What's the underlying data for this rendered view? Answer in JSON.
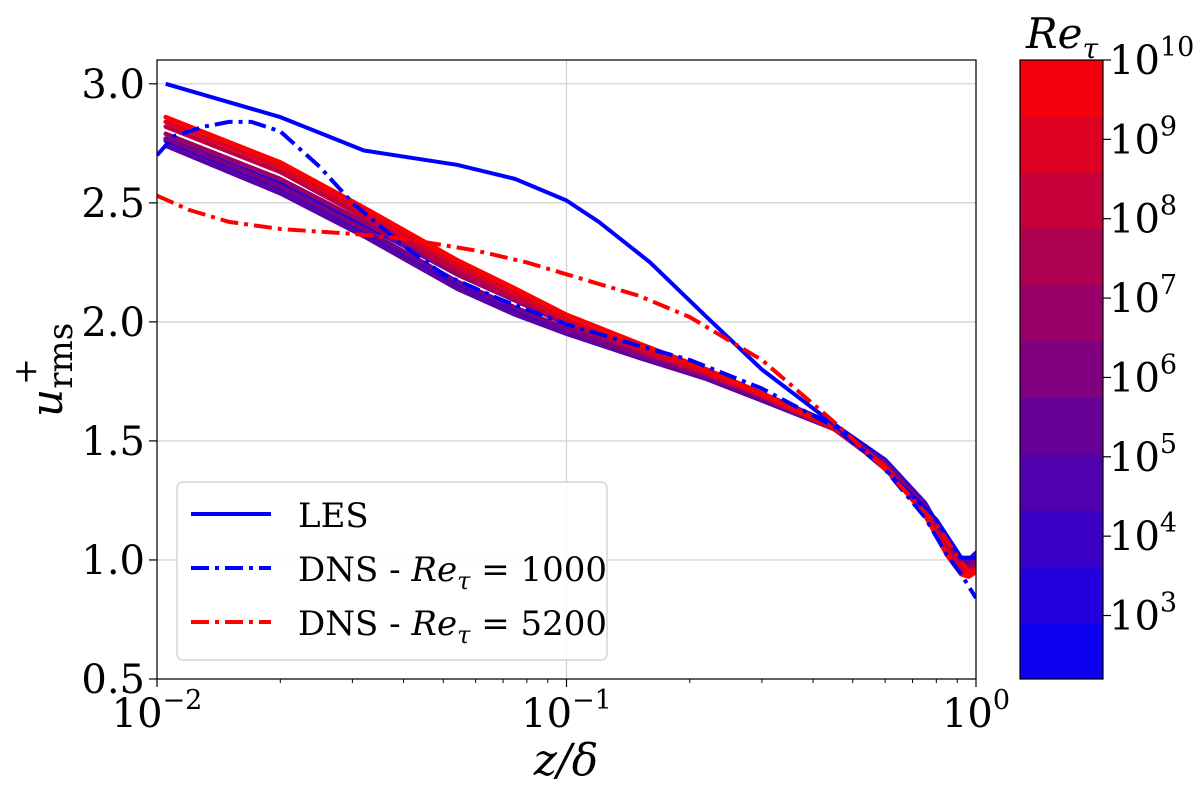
{
  "chart_data": {
    "type": "line",
    "xlabel": "z/δ",
    "ylabel": "u+ rms",
    "ylabel_parts": {
      "main": "u",
      "sup": "+",
      "sub": "rms"
    },
    "xscale": "log",
    "xlim": [
      0.01,
      1
    ],
    "ylim": [
      0.5,
      3.1
    ],
    "x_ticks": [
      {
        "base": "10",
        "exp": "−2"
      },
      {
        "base": "10",
        "exp": "−1"
      },
      {
        "base": "10",
        "exp": "0"
      }
    ],
    "y_ticks": [
      "0.5",
      "1.0",
      "1.5",
      "2.0",
      "2.5",
      "3.0"
    ],
    "grid": true,
    "legend_position": "lower-left",
    "series": [
      {
        "name": "LES",
        "label_parts": {
          "text": "LES"
        },
        "color": "#0000ff",
        "style": "solid",
        "x": [
          0.0105,
          0.02,
          0.032,
          0.054,
          0.075,
          0.1,
          0.12,
          0.16,
          0.22,
          0.3,
          0.45,
          0.6,
          0.8,
          0.92,
          1.0
        ],
        "y": [
          3.0,
          2.86,
          2.72,
          2.66,
          2.6,
          2.51,
          2.42,
          2.25,
          2.02,
          1.8,
          1.57,
          1.38,
          1.17,
          1.01,
          1.01
        ]
      },
      {
        "name": "DNS - Reτ = 1000",
        "label_parts": {
          "text": "DNS - ",
          "math": "Re",
          "sub": "τ",
          "eq": " = 1000"
        },
        "color": "#0000ff",
        "style": "dashdot",
        "x": [
          0.01,
          0.011,
          0.013,
          0.015,
          0.017,
          0.02,
          0.025,
          0.03,
          0.04,
          0.05,
          0.07,
          0.1,
          0.15,
          0.2,
          0.3,
          0.45,
          0.6,
          0.75,
          0.85,
          0.92,
          1.0
        ],
        "y": [
          2.7,
          2.78,
          2.82,
          2.84,
          2.84,
          2.8,
          2.65,
          2.5,
          2.32,
          2.2,
          2.09,
          1.99,
          1.9,
          1.84,
          1.72,
          1.56,
          1.38,
          1.18,
          1.02,
          0.94,
          0.84
        ]
      },
      {
        "name": "DNS - Reτ = 5200",
        "label_parts": {
          "text": "DNS - ",
          "math": "Re",
          "sub": "τ",
          "eq": " = 5200"
        },
        "color": "#ff0000",
        "style": "dashdot",
        "x": [
          0.01,
          0.012,
          0.015,
          0.02,
          0.03,
          0.04,
          0.06,
          0.08,
          0.1,
          0.15,
          0.2,
          0.3,
          0.45,
          0.6,
          0.8,
          0.92,
          1.0
        ],
        "y": [
          2.53,
          2.47,
          2.42,
          2.39,
          2.37,
          2.35,
          2.3,
          2.25,
          2.2,
          2.11,
          2.02,
          1.84,
          1.58,
          1.38,
          1.15,
          0.99,
          0.92
        ]
      }
    ],
    "family": {
      "colorbar_label": "Reτ",
      "colorbar_label_parts": {
        "main": "Re",
        "sub": "τ"
      },
      "colorbar_range_log10": [
        2.2,
        10.0
      ],
      "colorbar_tick_exponents": [
        "3",
        "4",
        "5",
        "6",
        "7",
        "8",
        "9",
        "10"
      ],
      "colorbar_tick_log10": [
        3,
        4,
        5,
        6,
        7,
        8,
        9,
        10
      ],
      "color_low": "#0000ff",
      "color_high": "#ff0000",
      "style": "solid",
      "x": [
        0.0105,
        0.02,
        0.032,
        0.054,
        0.075,
        0.1,
        0.15,
        0.22,
        0.3,
        0.45,
        0.6,
        0.75,
        0.85,
        0.92,
        0.96,
        1.0
      ],
      "lines": [
        {
          "re_log10": 3,
          "y": [
            2.77,
            2.58,
            2.41,
            2.2,
            2.09,
            1.99,
            1.88,
            1.79,
            1.7,
            1.57,
            1.42,
            1.24,
            1.07,
            0.99,
            0.99,
            1.02
          ]
        },
        {
          "re_log10": 4,
          "y": [
            2.76,
            2.56,
            2.38,
            2.16,
            2.05,
            1.96,
            1.86,
            1.77,
            1.68,
            1.56,
            1.41,
            1.24,
            1.08,
            1.0,
            1.0,
            1.03
          ]
        },
        {
          "re_log10": 5,
          "y": [
            2.74,
            2.54,
            2.36,
            2.14,
            2.03,
            1.95,
            1.85,
            1.76,
            1.67,
            1.55,
            1.41,
            1.23,
            1.07,
            0.99,
            0.99,
            1.02
          ]
        },
        {
          "re_log10": 6,
          "y": [
            2.77,
            2.57,
            2.39,
            2.17,
            2.06,
            1.97,
            1.86,
            1.77,
            1.68,
            1.55,
            1.4,
            1.22,
            1.06,
            0.98,
            0.97,
            1.0
          ]
        },
        {
          "re_log10": 7,
          "y": [
            2.79,
            2.6,
            2.42,
            2.2,
            2.09,
            1.99,
            1.88,
            1.78,
            1.69,
            1.55,
            1.4,
            1.21,
            1.05,
            0.97,
            0.96,
            0.98
          ]
        },
        {
          "re_log10": 8,
          "y": [
            2.82,
            2.63,
            2.44,
            2.22,
            2.1,
            2.0,
            1.88,
            1.78,
            1.69,
            1.55,
            1.39,
            1.2,
            1.04,
            0.96,
            0.95,
            0.97
          ]
        },
        {
          "re_log10": 9,
          "y": [
            2.84,
            2.65,
            2.46,
            2.24,
            2.12,
            2.01,
            1.89,
            1.79,
            1.69,
            1.55,
            1.39,
            1.19,
            1.03,
            0.95,
            0.94,
            0.96
          ]
        },
        {
          "re_log10": 10,
          "y": [
            2.86,
            2.67,
            2.48,
            2.26,
            2.14,
            2.03,
            1.91,
            1.8,
            1.7,
            1.56,
            1.39,
            1.19,
            1.02,
            0.94,
            0.93,
            0.95
          ]
        }
      ]
    }
  }
}
